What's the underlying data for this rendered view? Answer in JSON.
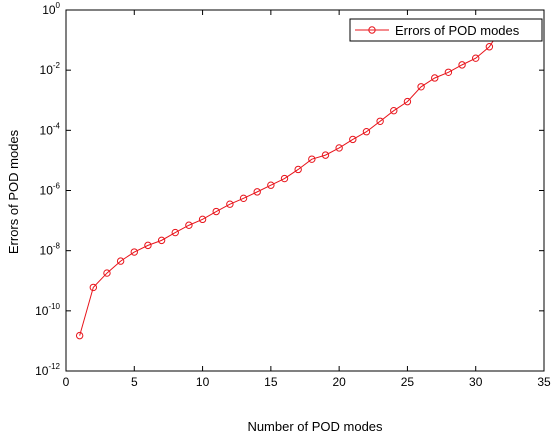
{
  "chart_data": {
    "type": "line",
    "xlabel": "Number of POD modes",
    "ylabel": "Errors of POD modes",
    "xlim": [
      0,
      35
    ],
    "ylim_exponent": [
      -12,
      0
    ],
    "yscale": "log",
    "x_ticks": [
      "0",
      "5",
      "10",
      "15",
      "20",
      "25",
      "30",
      "35"
    ],
    "y_ticks": [
      {
        "base": "10",
        "exp": "0"
      },
      {
        "base": "10",
        "exp": "-2"
      },
      {
        "base": "10",
        "exp": "-4"
      },
      {
        "base": "10",
        "exp": "-6"
      },
      {
        "base": "10",
        "exp": "-8"
      },
      {
        "base": "10",
        "exp": "-10"
      },
      {
        "base": "10",
        "exp": "-12"
      }
    ],
    "grid": false,
    "legend_position": "top-right",
    "series": [
      {
        "name": "Errors of POD modes",
        "color": "#e8141b",
        "marker": "circle",
        "x": [
          1,
          2,
          3,
          4,
          5,
          6,
          7,
          8,
          9,
          10,
          11,
          12,
          13,
          14,
          15,
          16,
          17,
          18,
          19,
          20,
          21,
          22,
          23,
          24,
          25,
          26,
          27,
          28,
          29,
          30,
          31,
          32
        ],
        "y": [
          1.5e-11,
          6e-10,
          1.8e-09,
          4.5e-09,
          9e-09,
          1.5e-08,
          2.2e-08,
          4e-08,
          7e-08,
          1.1e-07,
          2e-07,
          3.5e-07,
          5.5e-07,
          9e-07,
          1.5e-06,
          2.5e-06,
          5e-06,
          1.1e-05,
          1.5e-05,
          2.6e-05,
          5e-05,
          9e-05,
          0.0002,
          0.00045,
          0.0009,
          0.0028,
          0.0055,
          0.0085,
          0.015,
          0.025,
          0.06,
          0.3
        ]
      }
    ]
  }
}
